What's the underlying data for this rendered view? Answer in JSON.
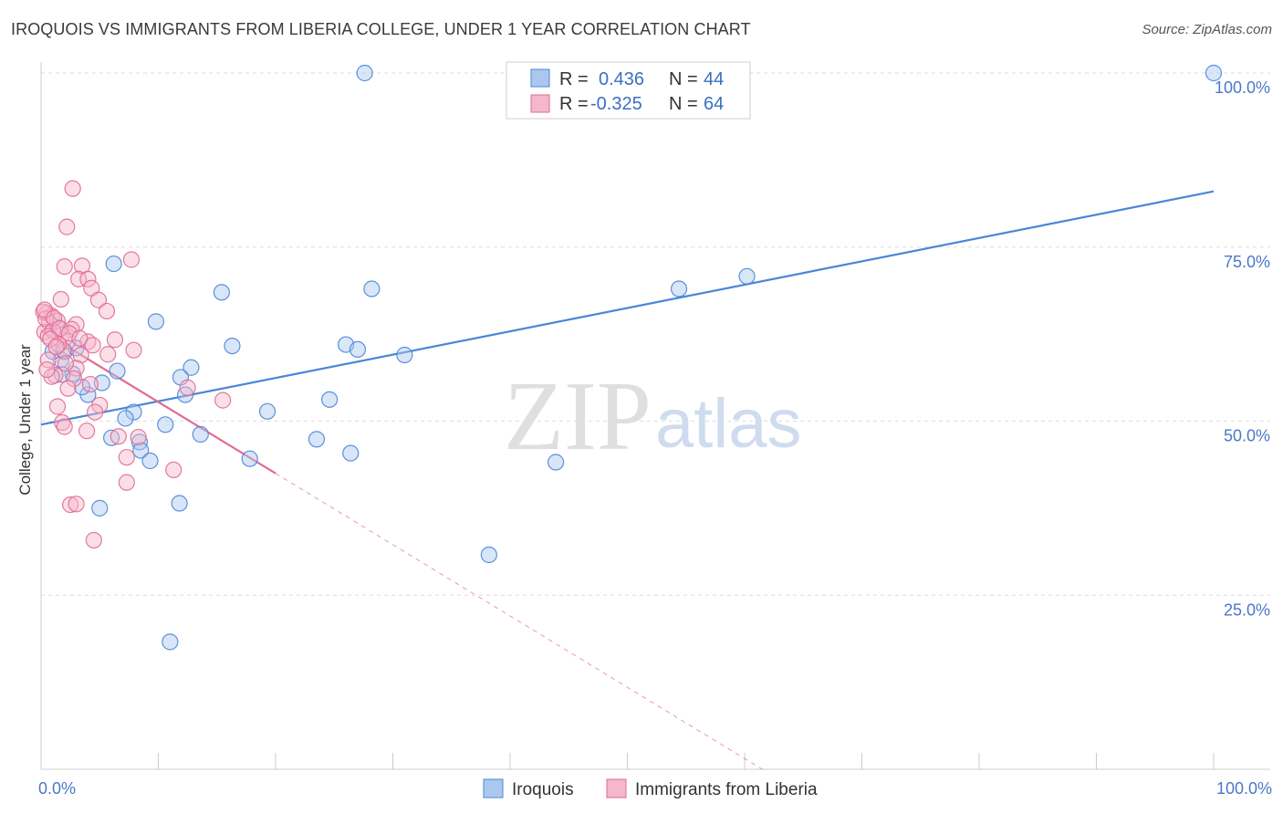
{
  "title": "IROQUOIS VS IMMIGRANTS FROM LIBERIA COLLEGE, UNDER 1 YEAR CORRELATION CHART",
  "source": "Source: ZipAtlas.com",
  "watermark": {
    "zip": "ZIP",
    "atlas": "atlas"
  },
  "colors": {
    "blue": "#4a86d8",
    "blue_fill": "#aac8ef",
    "pink": "#e26a93",
    "pink_fill": "#f4b7cb",
    "tick_text": "#4a78c9",
    "grid": "#dddddd"
  },
  "stats": {
    "r_label": "R =",
    "n_label": "N =",
    "iroquois": {
      "r": "0.436",
      "n": "44"
    },
    "liberia": {
      "r": "-0.325",
      "n": "64"
    }
  },
  "chart_data": {
    "type": "scatter",
    "title": "IROQUOIS VS IMMIGRANTS FROM LIBERIA COLLEGE, UNDER 1 YEAR CORRELATION CHART",
    "xlabel": "",
    "ylabel": "College, Under 1 year",
    "xlim": [
      0,
      100
    ],
    "ylim": [
      0,
      100
    ],
    "x_tick_labels": [
      "0.0%",
      "100.0%"
    ],
    "y_ticks": [
      {
        "value": 25,
        "label": "25.0%"
      },
      {
        "value": 50,
        "label": "50.0%"
      },
      {
        "value": 75,
        "label": "75.0%"
      },
      {
        "value": 100,
        "label": "100.0%"
      }
    ],
    "legend_position": "bottom-center",
    "series": [
      {
        "name": "Iroquois",
        "color": "#4a86d8",
        "trend": {
          "x0": 0,
          "y0": 49.5,
          "x1": 100,
          "y1": 83
        },
        "points": [
          [
            27.6,
            100
          ],
          [
            100,
            100
          ],
          [
            6.2,
            72.6
          ],
          [
            15.4,
            68.5
          ],
          [
            28.2,
            69
          ],
          [
            54.4,
            69
          ],
          [
            60.2,
            70.8
          ],
          [
            9.8,
            64.3
          ],
          [
            16.3,
            60.8
          ],
          [
            26,
            61
          ],
          [
            27,
            60.3
          ],
          [
            31,
            59.5
          ],
          [
            12.8,
            57.7
          ],
          [
            11.9,
            56.3
          ],
          [
            6.5,
            57.2
          ],
          [
            5.2,
            55.5
          ],
          [
            12.3,
            53.8
          ],
          [
            24.6,
            53.1
          ],
          [
            19.3,
            51.4
          ],
          [
            7.9,
            51.3
          ],
          [
            7.2,
            50.4
          ],
          [
            10.6,
            49.5
          ],
          [
            4.0,
            53.8
          ],
          [
            1.7,
            58.8
          ],
          [
            13.6,
            48.1
          ],
          [
            8.4,
            47.0
          ],
          [
            23.5,
            47.4
          ],
          [
            6.0,
            47.6
          ],
          [
            8.5,
            45.8
          ],
          [
            17.8,
            44.6
          ],
          [
            26.4,
            45.4
          ],
          [
            9.3,
            44.3
          ],
          [
            43.9,
            44.1
          ],
          [
            11.8,
            38.2
          ],
          [
            5.0,
            37.5
          ],
          [
            38.2,
            30.8
          ],
          [
            11.0,
            18.3
          ],
          [
            1.0,
            60
          ],
          [
            2.0,
            60
          ],
          [
            1.4,
            63.5
          ],
          [
            2.7,
            56.8
          ],
          [
            3.5,
            54.9
          ],
          [
            3.0,
            60.5
          ],
          [
            1.8,
            56.7
          ]
        ]
      },
      {
        "name": "Immigrants from Liberia",
        "color": "#e26a93",
        "trend": {
          "x0": 0,
          "y0": 63,
          "x1": 20,
          "y1": 42.5
        },
        "trend_extension": {
          "x0": 20,
          "y0": 42.5,
          "x1": 61.5,
          "y1": 0
        },
        "points": [
          [
            2.7,
            83.4
          ],
          [
            2.2,
            77.9
          ],
          [
            7.7,
            73.2
          ],
          [
            2.0,
            72.2
          ],
          [
            3.5,
            72.3
          ],
          [
            3.2,
            70.4
          ],
          [
            4.0,
            70.4
          ],
          [
            4.3,
            69.1
          ],
          [
            1.7,
            67.5
          ],
          [
            4.9,
            67.4
          ],
          [
            5.6,
            65.8
          ],
          [
            0.5,
            65.5
          ],
          [
            0.9,
            65.1
          ],
          [
            1.4,
            64.4
          ],
          [
            0.7,
            64.1
          ],
          [
            3.0,
            63.9
          ],
          [
            2.6,
            63.2
          ],
          [
            0.3,
            62.8
          ],
          [
            1.8,
            62.4
          ],
          [
            2.3,
            61.5
          ],
          [
            6.3,
            61.7
          ],
          [
            4.0,
            61.4
          ],
          [
            1.9,
            60.2
          ],
          [
            7.9,
            60.2
          ],
          [
            5.7,
            59.6
          ],
          [
            3.4,
            59.5
          ],
          [
            0.6,
            58.8
          ],
          [
            3.0,
            57.6
          ],
          [
            2.8,
            56.1
          ],
          [
            1.2,
            56.6
          ],
          [
            0.9,
            56.4
          ],
          [
            4.2,
            55.3
          ],
          [
            12.5,
            54.8
          ],
          [
            2.3,
            54.7
          ],
          [
            15.5,
            53.0
          ],
          [
            5.0,
            52.3
          ],
          [
            1.4,
            52.1
          ],
          [
            4.6,
            51.3
          ],
          [
            1.8,
            49.8
          ],
          [
            2.0,
            49.2
          ],
          [
            3.9,
            48.6
          ],
          [
            8.3,
            47.7
          ],
          [
            6.6,
            47.8
          ],
          [
            7.3,
            44.8
          ],
          [
            11.3,
            43.0
          ],
          [
            7.3,
            41.2
          ],
          [
            2.5,
            38.0
          ],
          [
            3.0,
            38.1
          ],
          [
            4.5,
            32.9
          ],
          [
            0.2,
            65.7
          ],
          [
            0.4,
            64.7
          ],
          [
            1.0,
            63.0
          ],
          [
            0.6,
            62.2
          ],
          [
            1.5,
            61.0
          ],
          [
            0.3,
            66.0
          ],
          [
            1.1,
            64.8
          ],
          [
            1.6,
            63.3
          ],
          [
            2.4,
            62.6
          ],
          [
            3.3,
            61.9
          ],
          [
            0.8,
            61.8
          ],
          [
            1.3,
            60.7
          ],
          [
            2.1,
            58.3
          ],
          [
            4.4,
            60.9
          ],
          [
            0.5,
            57.4
          ]
        ]
      }
    ]
  },
  "legend": [
    {
      "label": "Iroquois"
    },
    {
      "label": "Immigrants from Liberia"
    }
  ]
}
